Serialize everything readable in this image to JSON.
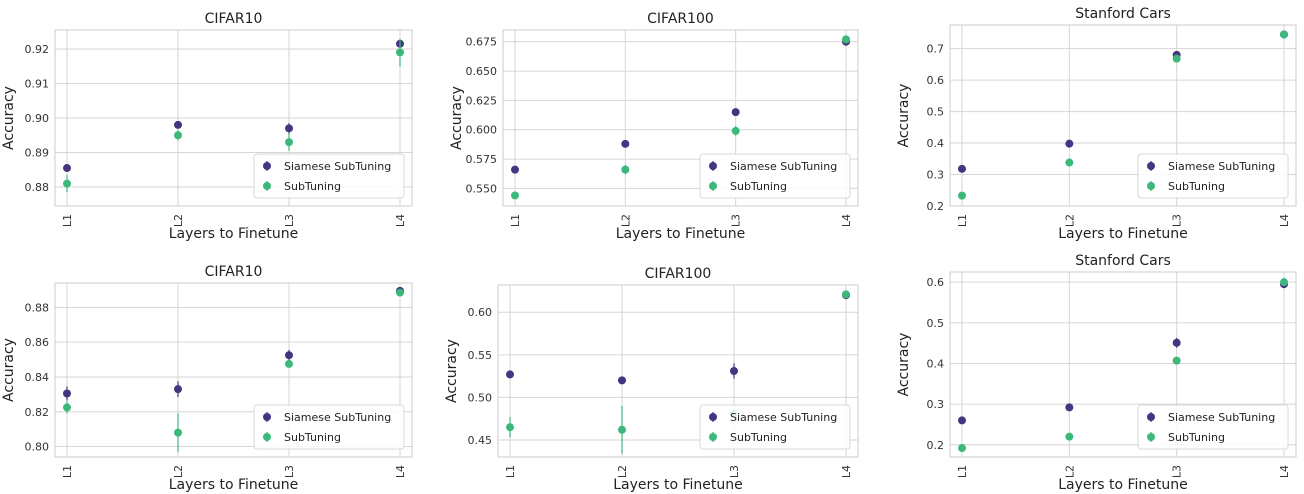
{
  "figure": {
    "x_axis_label": "Layers to Finetune",
    "y_axis_label": "Accuracy"
  },
  "colors": {
    "siamese": "#453581",
    "subtuning": "#3cb97a",
    "grid": "#d6d6d6",
    "frame": "#cccccc"
  },
  "legend": {
    "entries": [
      "Siamese SubTuning",
      "SubTuning"
    ],
    "placement": "lower-right"
  },
  "chart_data": [
    {
      "type": "scatter",
      "title": "CIFAR10",
      "xlabel": "Layers to Finetune",
      "ylabel": "Accuracy",
      "categories": [
        "L1",
        "L2",
        "L3",
        "L4"
      ],
      "ylim": [
        0.8745,
        0.9255
      ],
      "yticks": [
        0.88,
        0.89,
        0.9,
        0.91,
        0.92
      ],
      "ytick_labels": [
        "0.88",
        "0.89",
        "0.90",
        "0.91",
        "0.92"
      ],
      "grid": true,
      "legend": "lower-right",
      "series": [
        {
          "name": "Siamese SubTuning",
          "values": [
            0.8855,
            0.898,
            0.897,
            0.9215
          ],
          "errors": [
            0.001,
            0.001,
            0.0015,
            0.001
          ]
        },
        {
          "name": "SubTuning",
          "values": [
            0.881,
            0.895,
            0.893,
            0.919
          ],
          "errors": [
            0.0025,
            0.0015,
            0.0025,
            0.004
          ]
        }
      ]
    },
    {
      "type": "scatter",
      "title": "CIFAR100",
      "xlabel": "Layers to Finetune",
      "ylabel": "Accuracy",
      "categories": [
        "L1",
        "L2",
        "L3",
        "L4"
      ],
      "ylim": [
        0.535,
        0.685
      ],
      "yticks": [
        0.55,
        0.575,
        0.6,
        0.625,
        0.65,
        0.675
      ],
      "ytick_labels": [
        "0.550",
        "0.575",
        "0.600",
        "0.625",
        "0.650",
        "0.675"
      ],
      "grid": true,
      "legend": "lower-right",
      "series": [
        {
          "name": "Siamese SubTuning",
          "values": [
            0.566,
            0.588,
            0.615,
            0.675
          ],
          "errors": [
            0.003,
            0.003,
            0.003,
            0.002
          ]
        },
        {
          "name": "SubTuning",
          "values": [
            0.544,
            0.566,
            0.599,
            0.677
          ],
          "errors": [
            0.003,
            0.004,
            0.004,
            0.002
          ]
        }
      ]
    },
    {
      "type": "scatter",
      "title": "Stanford Cars",
      "xlabel": "Layers to Finetune",
      "ylabel": "Accuracy",
      "categories": [
        "L1",
        "L2",
        "L3",
        "L4"
      ],
      "ylim": [
        0.2,
        0.775
      ],
      "yticks": [
        0.2,
        0.3,
        0.4,
        0.5,
        0.6,
        0.7
      ],
      "ytick_labels": [
        "0.2",
        "0.3",
        "0.4",
        "0.5",
        "0.6",
        "0.7"
      ],
      "grid": true,
      "legend": "lower-right",
      "series": [
        {
          "name": "Siamese SubTuning",
          "values": [
            0.318,
            0.398,
            0.68,
            0.745
          ],
          "errors": [
            0.006,
            0.006,
            0.008,
            0.006
          ]
        },
        {
          "name": "SubTuning",
          "values": [
            0.233,
            0.338,
            0.668,
            0.745
          ],
          "errors": [
            0.006,
            0.006,
            0.01,
            0.006
          ]
        }
      ]
    },
    {
      "type": "scatter",
      "title": "CIFAR10",
      "xlabel": "Layers to Finetune",
      "ylabel": "Accuracy",
      "categories": [
        "L1",
        "L2",
        "L3",
        "L4"
      ],
      "ylim": [
        0.794,
        0.894
      ],
      "yticks": [
        0.8,
        0.82,
        0.84,
        0.86,
        0.88
      ],
      "ytick_labels": [
        "0.80",
        "0.82",
        "0.84",
        "0.86",
        "0.88"
      ],
      "grid": true,
      "legend": "lower-right",
      "series": [
        {
          "name": "Siamese SubTuning",
          "values": [
            0.8305,
            0.833,
            0.8525,
            0.8895
          ],
          "errors": [
            0.004,
            0.0045,
            0.003,
            0.002
          ]
        },
        {
          "name": "SubTuning",
          "values": [
            0.8225,
            0.808,
            0.8475,
            0.8885
          ],
          "errors": [
            0.0035,
            0.011,
            0.002,
            0.002
          ]
        }
      ]
    },
    {
      "type": "scatter",
      "title": "CIFAR100",
      "xlabel": "Layers to Finetune",
      "ylabel": "Accuracy",
      "categories": [
        "L1",
        "L2",
        "L3",
        "L4"
      ],
      "ylim": [
        0.43,
        0.632
      ],
      "yticks": [
        0.45,
        0.5,
        0.55,
        0.6
      ],
      "ytick_labels": [
        "0.45",
        "0.50",
        "0.55",
        "0.60"
      ],
      "grid": true,
      "legend": "lower-right",
      "series": [
        {
          "name": "Siamese SubTuning",
          "values": [
            0.527,
            0.52,
            0.531,
            0.62
          ],
          "errors": [
            0.003,
            0.003,
            0.009,
            0.003
          ]
        },
        {
          "name": "SubTuning",
          "values": [
            0.465,
            0.462,
            0.481,
            0.621
          ],
          "errors": [
            0.012,
            0.028,
            0.006,
            0.003
          ]
        }
      ]
    },
    {
      "type": "scatter",
      "title": "Stanford Cars",
      "xlabel": "Layers to Finetune",
      "ylabel": "Accuracy",
      "categories": [
        "L1",
        "L2",
        "L3",
        "L4"
      ],
      "ylim": [
        0.17,
        0.625
      ],
      "yticks": [
        0.2,
        0.3,
        0.4,
        0.5,
        0.6
      ],
      "ytick_labels": [
        "0.2",
        "0.3",
        "0.4",
        "0.5",
        "0.6"
      ],
      "grid": true,
      "legend": "lower-right",
      "series": [
        {
          "name": "Siamese SubTuning",
          "values": [
            0.26,
            0.292,
            0.451,
            0.595
          ],
          "errors": [
            0.004,
            0.005,
            0.012,
            0.004
          ]
        },
        {
          "name": "SubTuning",
          "values": [
            0.192,
            0.22,
            0.407,
            0.6
          ],
          "errors": [
            0.006,
            0.005,
            0.006,
            0.004
          ]
        }
      ]
    }
  ]
}
